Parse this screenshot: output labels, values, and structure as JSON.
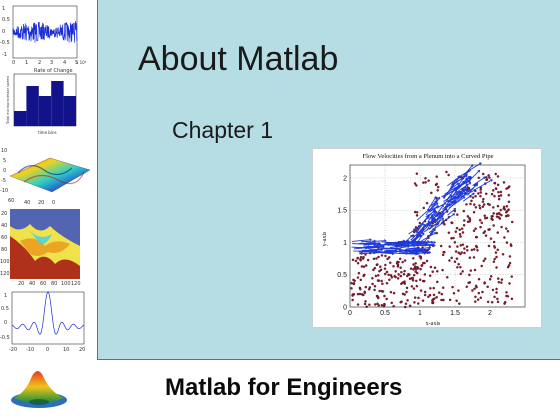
{
  "slide": {
    "title": "About Matlab",
    "subtitle": "Chapter 1",
    "footer": "Matlab for Engineers"
  },
  "thumbnails": {
    "signal": {
      "yticks": [
        "1",
        "0.5",
        "0",
        "-0.5",
        "-1"
      ],
      "xticks": [
        "0",
        "1",
        "2",
        "3",
        "4",
        "5"
      ],
      "exponent": "x 10⁴"
    },
    "bar": {
      "title": "Rate of Change",
      "ylabel": "Total microprocessor speed",
      "xlabel": "time bins",
      "values": [
        0.3,
        0.8,
        0.6,
        0.9,
        0.6
      ]
    },
    "surface": {
      "zticks": [
        "10",
        "5",
        "0",
        "-5",
        "-10"
      ],
      "xticks": [
        "60",
        "40",
        "20",
        "0"
      ]
    },
    "fractal": {
      "yticks": [
        "20",
        "40",
        "60",
        "80",
        "100",
        "120"
      ],
      "xticks": [
        "20",
        "40",
        "60",
        "80",
        "100",
        "120"
      ]
    },
    "sinc": {
      "yticks": [
        "1",
        "0.5",
        "0",
        "-0.5"
      ],
      "xticks": [
        "-20",
        "-10",
        "0",
        "10",
        "20"
      ]
    }
  },
  "chart_data": {
    "type": "scatter",
    "title": "Flow Velocities from a Plenum into a Curved Pipe",
    "xlabel": "x-axis",
    "ylabel": "y-axis",
    "xlim": [
      0,
      2.5
    ],
    "ylim": [
      0,
      2.2
    ],
    "xticks": [
      "0",
      "0.5",
      "1",
      "1.5",
      "2"
    ],
    "yticks": [
      "0",
      "0.5",
      "1",
      "1.5",
      "2"
    ],
    "grid": true,
    "series": [
      {
        "marker": "dots",
        "color": "#8b1a2a"
      },
      {
        "marker": "arrows",
        "color": "#1f3ad6"
      }
    ]
  }
}
